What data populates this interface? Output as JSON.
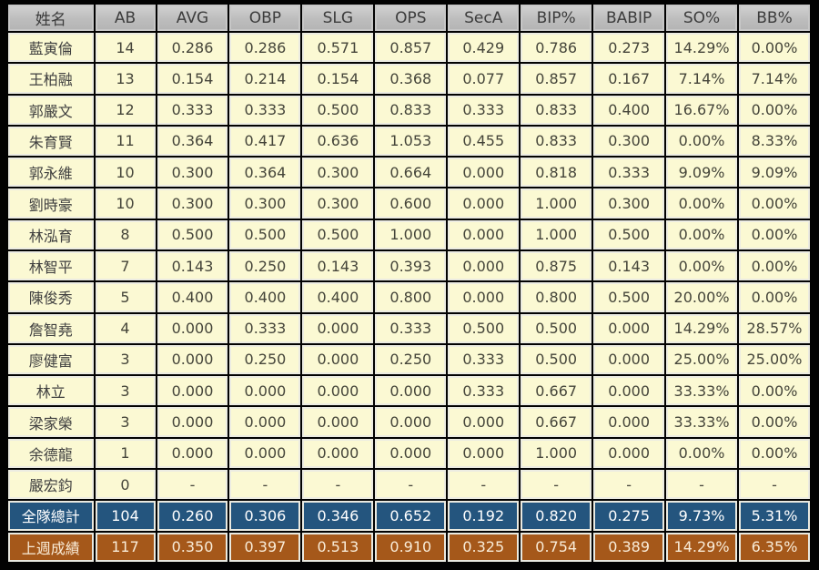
{
  "table": {
    "columns": [
      "姓名",
      "AB",
      "AVG",
      "OBP",
      "SLG",
      "OPS",
      "SecA",
      "BIP%",
      "BABIP",
      "SO%",
      "BB%"
    ],
    "rows": [
      {
        "name": "藍寅倫",
        "values": [
          "14",
          "0.286",
          "0.286",
          "0.571",
          "0.857",
          "0.429",
          "0.786",
          "0.273",
          "14.29%",
          "0.00%"
        ]
      },
      {
        "name": "王柏融",
        "values": [
          "13",
          "0.154",
          "0.214",
          "0.154",
          "0.368",
          "0.077",
          "0.857",
          "0.167",
          "7.14%",
          "7.14%"
        ]
      },
      {
        "name": "郭嚴文",
        "values": [
          "12",
          "0.333",
          "0.333",
          "0.500",
          "0.833",
          "0.333",
          "0.833",
          "0.400",
          "16.67%",
          "0.00%"
        ]
      },
      {
        "name": "朱育賢",
        "values": [
          "11",
          "0.364",
          "0.417",
          "0.636",
          "1.053",
          "0.455",
          "0.833",
          "0.300",
          "0.00%",
          "8.33%"
        ]
      },
      {
        "name": "郭永維",
        "values": [
          "10",
          "0.300",
          "0.364",
          "0.300",
          "0.664",
          "0.000",
          "0.818",
          "0.333",
          "9.09%",
          "9.09%"
        ]
      },
      {
        "name": "劉時豪",
        "values": [
          "10",
          "0.300",
          "0.300",
          "0.300",
          "0.600",
          "0.000",
          "1.000",
          "0.300",
          "0.00%",
          "0.00%"
        ]
      },
      {
        "name": "林泓育",
        "values": [
          "8",
          "0.500",
          "0.500",
          "0.500",
          "1.000",
          "0.000",
          "1.000",
          "0.500",
          "0.00%",
          "0.00%"
        ]
      },
      {
        "name": "林智平",
        "values": [
          "7",
          "0.143",
          "0.250",
          "0.143",
          "0.393",
          "0.000",
          "0.875",
          "0.143",
          "0.00%",
          "0.00%"
        ]
      },
      {
        "name": "陳俊秀",
        "values": [
          "5",
          "0.400",
          "0.400",
          "0.400",
          "0.800",
          "0.000",
          "0.800",
          "0.500",
          "20.00%",
          "0.00%"
        ]
      },
      {
        "name": "詹智堯",
        "values": [
          "4",
          "0.000",
          "0.333",
          "0.000",
          "0.333",
          "0.500",
          "0.500",
          "0.000",
          "14.29%",
          "28.57%"
        ]
      },
      {
        "name": "廖健富",
        "values": [
          "3",
          "0.000",
          "0.250",
          "0.000",
          "0.250",
          "0.333",
          "0.500",
          "0.000",
          "25.00%",
          "25.00%"
        ]
      },
      {
        "name": "林立",
        "values": [
          "3",
          "0.000",
          "0.000",
          "0.000",
          "0.000",
          "0.333",
          "0.667",
          "0.000",
          "33.33%",
          "0.00%"
        ]
      },
      {
        "name": "梁家榮",
        "values": [
          "3",
          "0.000",
          "0.000",
          "0.000",
          "0.000",
          "0.000",
          "0.667",
          "0.000",
          "33.33%",
          "0.00%"
        ]
      },
      {
        "name": "余德龍",
        "values": [
          "1",
          "0.000",
          "0.000",
          "0.000",
          "0.000",
          "0.000",
          "1.000",
          "0.000",
          "0.00%",
          "0.00%"
        ]
      },
      {
        "name": "嚴宏鈞",
        "values": [
          "0",
          "-",
          "-",
          "-",
          "-",
          "-",
          "-",
          "-",
          "-",
          "-"
        ]
      }
    ],
    "totals": [
      {
        "label": "全隊總計",
        "values": [
          "104",
          "0.260",
          "0.306",
          "0.346",
          "0.652",
          "0.192",
          "0.820",
          "0.275",
          "9.73%",
          "5.31%"
        ]
      },
      {
        "label": "上週成績",
        "values": [
          "117",
          "0.350",
          "0.397",
          "0.513",
          "0.910",
          "0.325",
          "0.754",
          "0.389",
          "14.29%",
          "6.35%"
        ]
      }
    ]
  },
  "colors": {
    "page_background": "#000000",
    "header_bg": "#c0c0c0",
    "header_text": "#3c3c3c",
    "row_bg": "#fbf9d3",
    "row_text": "#45453a",
    "grid_line": "#ecece2",
    "team_total_bg": "#24557e",
    "team_total_text": "#ffffff",
    "last_week_bg": "#a5581a",
    "last_week_text": "#f9ecd8"
  },
  "chart_data": {
    "type": "table",
    "title": "Team batting statistics table",
    "columns": [
      "姓名",
      "AB",
      "AVG",
      "OBP",
      "SLG",
      "OPS",
      "SecA",
      "BIP%",
      "BABIP",
      "SO%",
      "BB%"
    ],
    "rows": [
      [
        "藍寅倫",
        14,
        0.286,
        0.286,
        0.571,
        0.857,
        0.429,
        0.786,
        0.273,
        "14.29%",
        "0.00%"
      ],
      [
        "王柏融",
        13,
        0.154,
        0.214,
        0.154,
        0.368,
        0.077,
        0.857,
        0.167,
        "7.14%",
        "7.14%"
      ],
      [
        "郭嚴文",
        12,
        0.333,
        0.333,
        0.5,
        0.833,
        0.333,
        0.833,
        0.4,
        "16.67%",
        "0.00%"
      ],
      [
        "朱育賢",
        11,
        0.364,
        0.417,
        0.636,
        1.053,
        0.455,
        0.833,
        0.3,
        "0.00%",
        "8.33%"
      ],
      [
        "郭永維",
        10,
        0.3,
        0.364,
        0.3,
        0.664,
        0.0,
        0.818,
        0.333,
        "9.09%",
        "9.09%"
      ],
      [
        "劉時豪",
        10,
        0.3,
        0.3,
        0.3,
        0.6,
        0.0,
        1.0,
        0.3,
        "0.00%",
        "0.00%"
      ],
      [
        "林泓育",
        8,
        0.5,
        0.5,
        0.5,
        1.0,
        0.0,
        1.0,
        0.5,
        "0.00%",
        "0.00%"
      ],
      [
        "林智平",
        7,
        0.143,
        0.25,
        0.143,
        0.393,
        0.0,
        0.875,
        0.143,
        "0.00%",
        "0.00%"
      ],
      [
        "陳俊秀",
        5,
        0.4,
        0.4,
        0.4,
        0.8,
        0.0,
        0.8,
        0.5,
        "20.00%",
        "0.00%"
      ],
      [
        "詹智堯",
        4,
        0.0,
        0.333,
        0.0,
        0.333,
        0.5,
        0.5,
        0.0,
        "14.29%",
        "28.57%"
      ],
      [
        "廖健富",
        3,
        0.0,
        0.25,
        0.0,
        0.25,
        0.333,
        0.5,
        0.0,
        "25.00%",
        "25.00%"
      ],
      [
        "林立",
        3,
        0.0,
        0.0,
        0.0,
        0.0,
        0.333,
        0.667,
        0.0,
        "33.33%",
        "0.00%"
      ],
      [
        "梁家榮",
        3,
        0.0,
        0.0,
        0.0,
        0.0,
        0.0,
        0.667,
        0.0,
        "33.33%",
        "0.00%"
      ],
      [
        "余德龍",
        1,
        0.0,
        0.0,
        0.0,
        0.0,
        0.0,
        1.0,
        0.0,
        "0.00%",
        "0.00%"
      ],
      [
        "嚴宏鈞",
        0,
        null,
        null,
        null,
        null,
        null,
        null,
        null,
        null,
        null
      ]
    ],
    "totals": [
      [
        "全隊總計",
        104,
        0.26,
        0.306,
        0.346,
        0.652,
        0.192,
        0.82,
        0.275,
        "9.73%",
        "5.31%"
      ],
      [
        "上週成績",
        117,
        0.35,
        0.397,
        0.513,
        0.91,
        0.325,
        0.754,
        0.389,
        "14.29%",
        "6.35%"
      ]
    ]
  }
}
